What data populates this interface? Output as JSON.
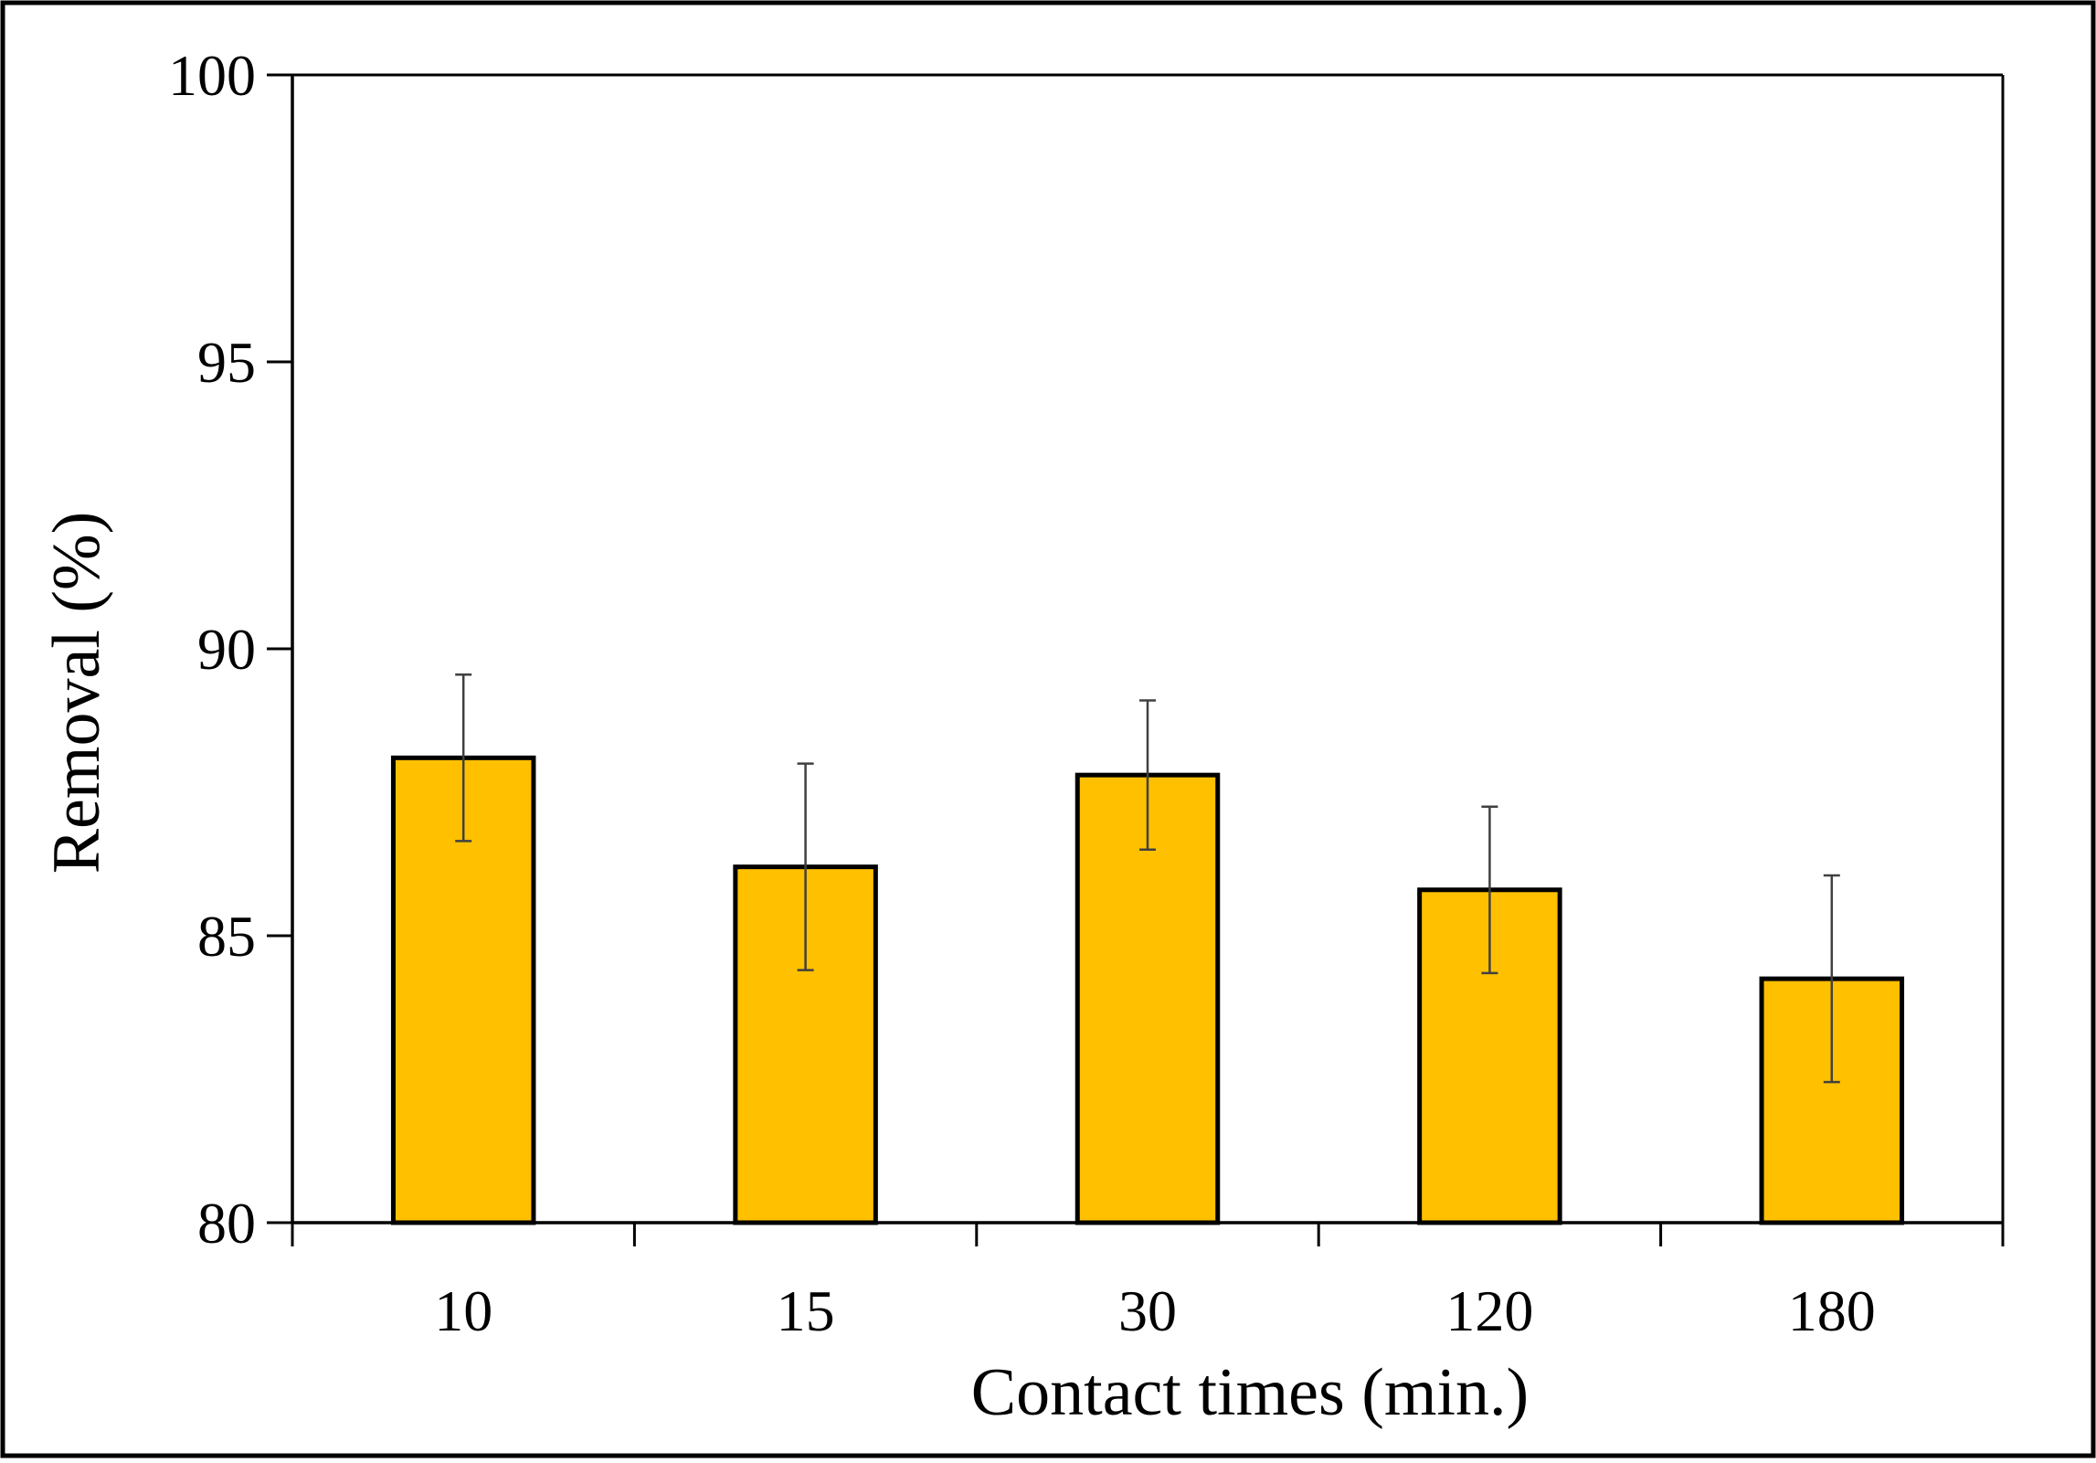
{
  "chart_data": {
    "type": "bar",
    "title": "",
    "xlabel": "Contact times  (min.)",
    "ylabel": "Removal (%)",
    "categories": [
      "10",
      "15",
      "30",
      "120",
      "180"
    ],
    "series": [
      {
        "values": [
          88.1,
          86.2,
          87.8,
          85.8,
          84.25
        ],
        "error": [
          1.45,
          1.8,
          1.3,
          1.45,
          1.8
        ]
      }
    ],
    "ylim": [
      80,
      100
    ],
    "yticks": [
      "80",
      "85",
      "90",
      "95",
      "100"
    ],
    "grid": false,
    "legend": "none",
    "colors": {
      "bar_fill": "#FFC000",
      "bar_stroke": "#000000",
      "error_bar": "#404040",
      "axis": "#000000",
      "frame": "#000000"
    }
  }
}
